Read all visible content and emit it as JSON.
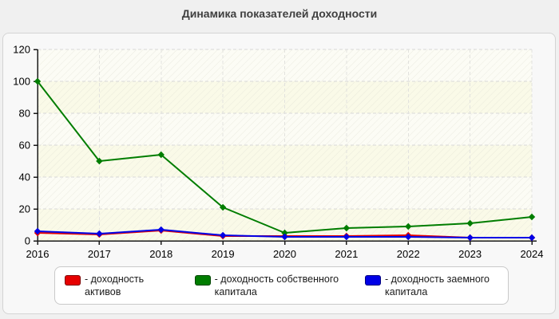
{
  "title": "Динамика показателей доходности",
  "chart_data": {
    "type": "line",
    "categories": [
      "2016",
      "2017",
      "2018",
      "2019",
      "2020",
      "2021",
      "2022",
      "2023",
      "2024"
    ],
    "series": [
      {
        "name": "доходность активов",
        "color": "#e60000",
        "values": [
          5,
          4,
          6.5,
          3,
          3,
          3,
          3.5,
          2,
          2
        ]
      },
      {
        "name": "доходность собственного капитала",
        "color": "#007d00",
        "values": [
          100,
          50,
          54,
          21,
          5,
          8,
          9,
          11,
          15
        ]
      },
      {
        "name": "доходность заемного капитала",
        "color": "#0000e6",
        "values": [
          6,
          4.5,
          7,
          3.5,
          2.5,
          2.5,
          2.5,
          2,
          2
        ]
      }
    ],
    "title": "Динамика показателей доходности",
    "xlabel": "",
    "ylabel": "",
    "ylim": [
      0,
      120
    ],
    "ytick_step": 20,
    "grid": "dashed",
    "legend_position": "bottom",
    "marker": "diamond"
  },
  "legend": {
    "items": [
      {
        "label": "- доходность активов"
      },
      {
        "label": "- доходность собственного капитала"
      },
      {
        "label": "- доходность заемного капитала"
      }
    ]
  },
  "colors": {
    "page_bg": "#f0f0f0",
    "panel_bg": "#f8f8f8",
    "panel_border": "#d4d4d4",
    "plot_band_a": "#fafae8",
    "plot_band_b": "#fcfcf5",
    "hatch_line": "#dcdcd0",
    "gridline": "#d8d8d8",
    "axis": "#1a1a1a",
    "tick_text": "#000000",
    "title_text": "#3f3f3f"
  }
}
